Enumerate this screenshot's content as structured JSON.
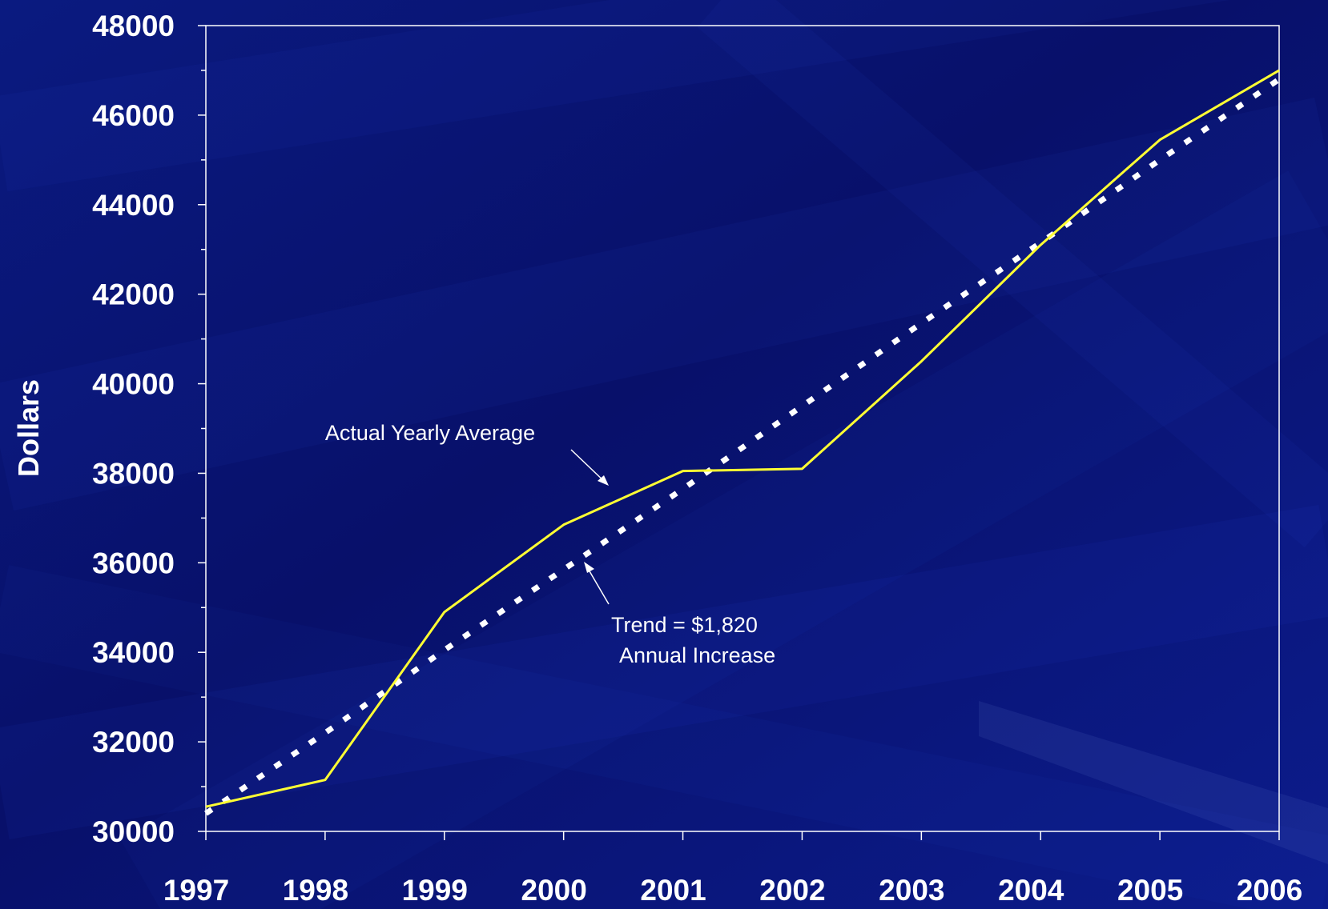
{
  "chart_data": {
    "type": "line",
    "title": "",
    "xlabel": "",
    "ylabel": "Dollars",
    "x": [
      "1997",
      "1998",
      "1999",
      "2000",
      "2001",
      "2002",
      "2003",
      "2004",
      "2005",
      "2006"
    ],
    "ylim": [
      30000,
      48000
    ],
    "yticks": [
      "30000",
      "32000",
      "34000",
      "36000",
      "38000",
      "40000",
      "42000",
      "44000",
      "46000",
      "48000"
    ],
    "grid": false,
    "legend": "none",
    "series": [
      {
        "values": [
          30550,
          31150,
          34900,
          36850,
          38050,
          38100,
          40500,
          43100,
          45450,
          47000
        ],
        "color": "#ffff33",
        "style": "solid"
      },
      {
        "values": [
          30400,
          32200,
          34050,
          35850,
          37650,
          39500,
          41350,
          43150,
          45000,
          46800
        ],
        "color": "#ffffff",
        "style": "dotted"
      }
    ],
    "annotations": [
      {
        "text": "Actual Yearly Average",
        "points_to": "actual"
      },
      {
        "lines": [
          "Trend = $1,820",
          "Annual Increase"
        ],
        "points_to": "trend"
      }
    ]
  },
  "colors": {
    "background": "#0a1470",
    "axis": "#ffffff",
    "text": "#ffffff"
  }
}
